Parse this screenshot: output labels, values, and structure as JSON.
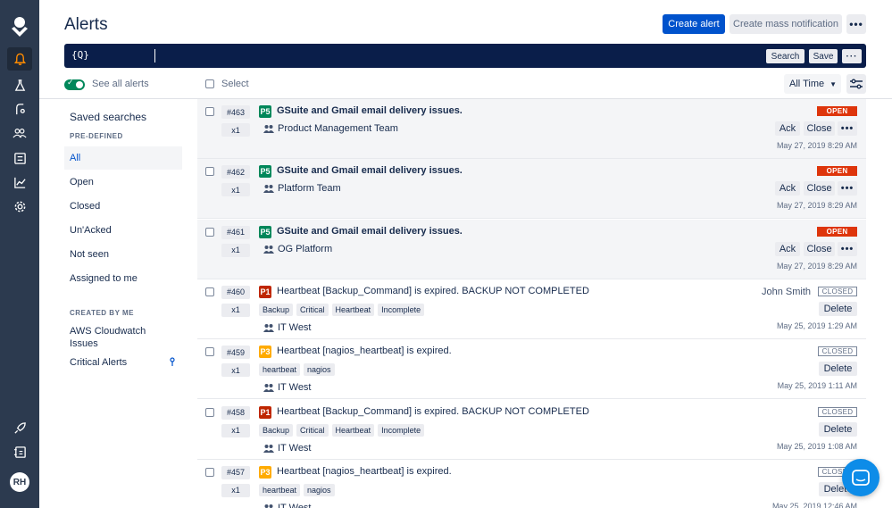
{
  "nav": {
    "items": [
      "bell-icon",
      "flask-icon",
      "route-icon",
      "teams-icon",
      "services-icon",
      "analytics-icon",
      "gear-icon"
    ],
    "bottom": [
      "rocket-icon",
      "contacts-icon"
    ],
    "avatar": "RH"
  },
  "header": {
    "title": "Alerts",
    "create_alert": "Create alert",
    "create_mass": "Create mass notification"
  },
  "query": {
    "icon_text": "{Q}",
    "help": "?",
    "search": "Search",
    "save": "Save"
  },
  "toolbar": {
    "see_all": "See all alerts",
    "select": "Select",
    "time_filter": "All Time"
  },
  "saved_searches": {
    "title": "Saved searches",
    "predefined_label": "PRE-DEFINED",
    "predefined": [
      "All",
      "Open",
      "Closed",
      "Un'Acked",
      "Not seen",
      "Assigned to me"
    ],
    "created_label": "CREATED BY ME",
    "created": [
      "AWS Cloudwatch Issues",
      "Critical Alerts"
    ]
  },
  "alerts": [
    {
      "id": "#463",
      "count": "x1",
      "priority": "P5",
      "message": "GSuite and Gmail email delivery issues.",
      "team": "Product Management Team",
      "tags": [],
      "status": "OPEN",
      "owner": "",
      "actions": [
        "Ack",
        "Close"
      ],
      "time": "May 27, 2019 8:29 AM"
    },
    {
      "id": "#462",
      "count": "x1",
      "priority": "P5",
      "message": "GSuite and Gmail email delivery issues.",
      "team": "Platform Team",
      "tags": [],
      "status": "OPEN",
      "owner": "",
      "actions": [
        "Ack",
        "Close"
      ],
      "time": "May 27, 2019 8:29 AM"
    },
    {
      "id": "#461",
      "count": "x1",
      "priority": "P5",
      "message": "GSuite and Gmail email delivery issues.",
      "team": "OG Platform",
      "tags": [],
      "status": "OPEN",
      "owner": "",
      "actions": [
        "Ack",
        "Close"
      ],
      "time": "May 27, 2019 8:29 AM"
    },
    {
      "id": "#460",
      "count": "x1",
      "priority": "P1",
      "message": "Heartbeat [Backup_Command] is expired. BACKUP NOT COMPLETED",
      "team": "IT West",
      "tags": [
        "Backup",
        "Critical",
        "Heartbeat",
        "Incomplete"
      ],
      "status": "CLOSED",
      "owner": "John Smith",
      "actions": [
        "Delete"
      ],
      "time": "May 25, 2019 1:29 AM"
    },
    {
      "id": "#459",
      "count": "x1",
      "priority": "P3",
      "message": "Heartbeat [nagios_heartbeat] is expired.",
      "team": "IT West",
      "tags": [
        "heartbeat",
        "nagios"
      ],
      "status": "CLOSED",
      "owner": "",
      "actions": [
        "Delete"
      ],
      "time": "May 25, 2019 1:11 AM"
    },
    {
      "id": "#458",
      "count": "x1",
      "priority": "P1",
      "message": "Heartbeat [Backup_Command] is expired. BACKUP NOT COMPLETED",
      "team": "IT West",
      "tags": [
        "Backup",
        "Critical",
        "Heartbeat",
        "Incomplete"
      ],
      "status": "CLOSED",
      "owner": "",
      "actions": [
        "Delete"
      ],
      "time": "May 25, 2019 1:08 AM"
    },
    {
      "id": "#457",
      "count": "x1",
      "priority": "P3",
      "message": "Heartbeat [nagios_heartbeat] is expired.",
      "team": "IT West",
      "tags": [
        "heartbeat",
        "nagios"
      ],
      "status": "CLOSED",
      "owner": "",
      "actions": [
        "Delete"
      ],
      "time": "May 25, 2019 12:46 AM"
    }
  ],
  "colors": {
    "nav_bg": "#2c3a4f",
    "primary": "#0052cc",
    "query_bg": "#0a1e4a",
    "open": "#de350b",
    "p5": "#00875a",
    "p1": "#bf2600",
    "p3": "#ffab00",
    "chat": "#0d8ce8"
  }
}
